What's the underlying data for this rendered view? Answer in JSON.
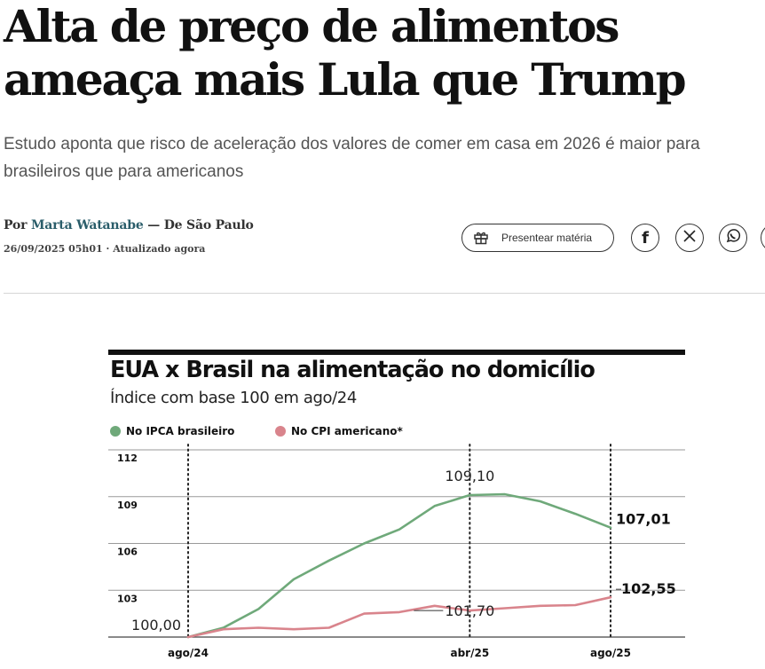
{
  "article": {
    "headline": "Alta de preço de alimentos ameaça mais Lula que Trump",
    "subtitle": "Estudo aponta que risco de aceleração dos valores de comer em casa em 2026 é maior para brasileiros que para americanos",
    "byline_prefix": "Por ",
    "author": "Marta Watanabe",
    "byline_suffix": " — De São Paulo",
    "dateline": "26/09/2025 05h01 · Atualizado agora"
  },
  "share": {
    "gift_label": "Presentear matéria",
    "icons": [
      "gift-icon",
      "facebook-icon",
      "x-icon",
      "whatsapp-icon",
      "more-share-icon"
    ]
  },
  "colors": {
    "brasil": "#6fa97a",
    "eua": "#d9848c",
    "author_link": "#2a5d6a"
  },
  "chart_data": {
    "type": "line",
    "title": "EUA x Brasil na alimentação no domicílio",
    "subtitle": "Índice com base 100 em ago/24",
    "legend_position": "top-left",
    "grid": true,
    "ylim": [
      100,
      112
    ],
    "yticks": [
      "112",
      "109",
      "106",
      "103"
    ],
    "xticks": [
      "ago/24",
      "abr/25",
      "ago/25"
    ],
    "x": [
      "ago/24",
      "set/24",
      "out/24",
      "nov/24",
      "dez/24",
      "jan/25",
      "fev/25",
      "mar/25",
      "abr/25",
      "mai/25",
      "jun/25",
      "jul/25",
      "ago/25"
    ],
    "series": [
      {
        "name": "No IPCA brasileiro",
        "values": [
          100.0,
          100.6,
          101.8,
          103.7,
          104.9,
          106.0,
          106.9,
          108.4,
          109.1,
          109.15,
          108.7,
          107.9,
          107.01
        ]
      },
      {
        "name": "No CPI americano*",
        "values": [
          100.0,
          100.5,
          100.6,
          100.5,
          100.6,
          101.5,
          101.6,
          102.0,
          101.7,
          101.85,
          102.0,
          102.05,
          102.55
        ]
      }
    ],
    "annotations": [
      {
        "label": "100,00",
        "x": "ago/24",
        "y": 100.0
      },
      {
        "label": "109,10",
        "x": "abr/25",
        "y": 109.1
      },
      {
        "label": "101,70",
        "x": "abr/25",
        "y": 101.7
      },
      {
        "label": "107,01",
        "x": "ago/25",
        "y": 107.01
      },
      {
        "label": "102,55",
        "x": "ago/25",
        "y": 102.55
      }
    ]
  }
}
